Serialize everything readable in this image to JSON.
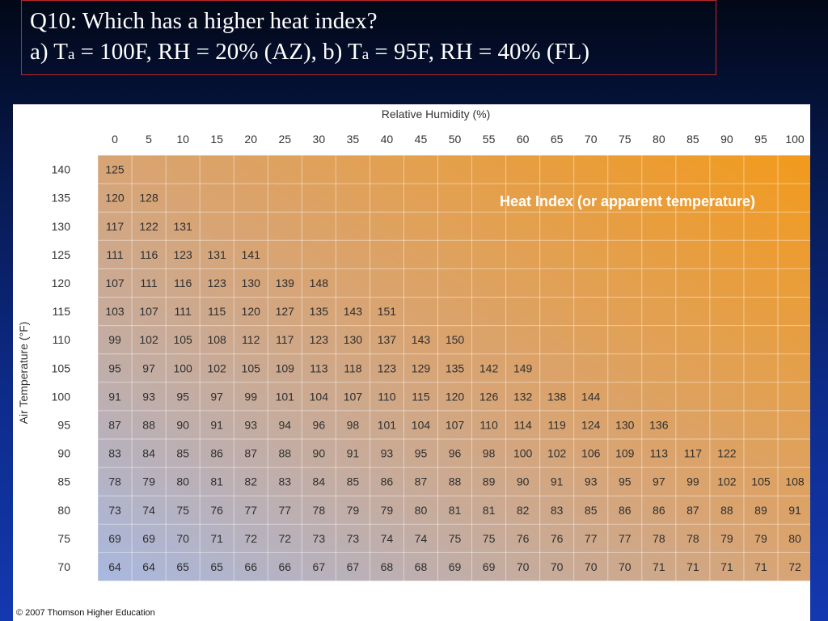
{
  "question": {
    "line1": "Q10: Which has a higher heat index?",
    "line2_a_prefix": "a) T",
    "line2_a_sub": "a",
    "line2_a_rest": " = 100F, RH = 20% (AZ), b) T",
    "line2_b_sub": "a",
    "line2_b_rest": " = 95F, RH = 40% (FL)"
  },
  "colors": {
    "cool": "#a8b8e0",
    "mid": "#d8a474",
    "warm": "#f29a1c",
    "frame": "#c2262b"
  },
  "chart_data": {
    "type": "table",
    "title": "Heat Index (or apparent temperature)",
    "xlabel": "Relative Humidity (%)",
    "ylabel": "Air Temperature (°F)",
    "x": [
      0,
      5,
      10,
      15,
      20,
      25,
      30,
      35,
      40,
      45,
      50,
      55,
      60,
      65,
      70,
      75,
      80,
      85,
      90,
      95,
      100
    ],
    "y": [
      140,
      135,
      130,
      125,
      120,
      115,
      110,
      105,
      100,
      95,
      90,
      85,
      80,
      75,
      70
    ],
    "values": [
      [
        125
      ],
      [
        120,
        128
      ],
      [
        117,
        122,
        131
      ],
      [
        111,
        116,
        123,
        131,
        141
      ],
      [
        107,
        111,
        116,
        123,
        130,
        139,
        148
      ],
      [
        103,
        107,
        111,
        115,
        120,
        127,
        135,
        143,
        151
      ],
      [
        99,
        102,
        105,
        108,
        112,
        117,
        123,
        130,
        137,
        143,
        150
      ],
      [
        95,
        97,
        100,
        102,
        105,
        109,
        113,
        118,
        123,
        129,
        135,
        142,
        149
      ],
      [
        91,
        93,
        95,
        97,
        99,
        101,
        104,
        107,
        110,
        115,
        120,
        126,
        132,
        138,
        144
      ],
      [
        87,
        88,
        90,
        91,
        93,
        94,
        96,
        98,
        101,
        104,
        107,
        110,
        114,
        119,
        124,
        130,
        136
      ],
      [
        83,
        84,
        85,
        86,
        87,
        88,
        90,
        91,
        93,
        95,
        96,
        98,
        100,
        102,
        106,
        109,
        113,
        117,
        122
      ],
      [
        78,
        79,
        80,
        81,
        82,
        83,
        84,
        85,
        86,
        87,
        88,
        89,
        90,
        91,
        93,
        95,
        97,
        99,
        102,
        105,
        108
      ],
      [
        73,
        74,
        75,
        76,
        77,
        77,
        78,
        79,
        79,
        80,
        81,
        81,
        82,
        83,
        85,
        86,
        86,
        87,
        88,
        89,
        91
      ],
      [
        69,
        69,
        70,
        71,
        72,
        72,
        73,
        73,
        74,
        74,
        75,
        75,
        76,
        76,
        77,
        77,
        78,
        78,
        79,
        79,
        80
      ],
      [
        64,
        64,
        65,
        65,
        66,
        66,
        67,
        67,
        68,
        68,
        69,
        69,
        70,
        70,
        70,
        70,
        71,
        71,
        71,
        71,
        72
      ]
    ]
  },
  "copyright": "© 2007 Thomson Higher Education"
}
